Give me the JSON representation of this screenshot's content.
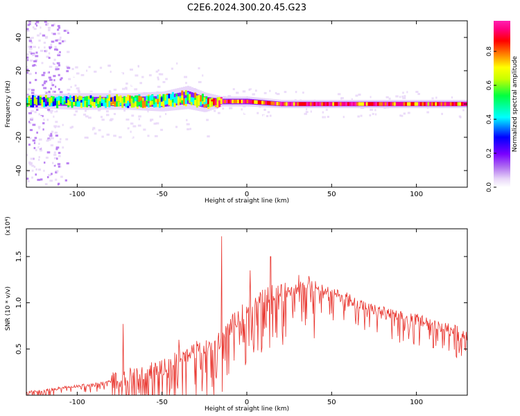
{
  "title": "C2E6.2024.300.20.45.G23",
  "chart_data": [
    {
      "type": "heatmap",
      "xlabel": "Height of straight line (km)",
      "ylabel": "Frequency (Hz)",
      "xlim": [
        -130,
        130
      ],
      "ylim": [
        -50,
        50
      ],
      "x_ticks": [
        -100,
        -50,
        0,
        50,
        100
      ],
      "y_ticks": [
        -40,
        -20,
        0,
        20,
        40
      ],
      "colorbar": {
        "label": "Normalized spectral amplitude",
        "range": [
          0.0,
          0.98
        ],
        "ticks": [
          0.0,
          0.2,
          0.4,
          0.6,
          0.8
        ],
        "colors": [
          "#ffffff",
          "#e8d6f8",
          "#b070f0",
          "#7a00ff",
          "#0000ff",
          "#00ffff",
          "#00ff40",
          "#c8ff00",
          "#ffff00",
          "#ff8000",
          "#ff0000",
          "#ff0080",
          "#ff20b0"
        ]
      },
      "grid": false,
      "band": [
        {
          "x": -130,
          "center": 1.5,
          "half_width": 4,
          "amplitude": 0.45
        },
        {
          "x": -100,
          "center": 1.5,
          "half_width": 5,
          "amplitude": 0.5
        },
        {
          "x": -70,
          "center": 1.5,
          "half_width": 5,
          "amplitude": 0.55
        },
        {
          "x": -50,
          "center": 1.5,
          "half_width": 6,
          "amplitude": 0.55
        },
        {
          "x": -35,
          "center": 4,
          "half_width": 7,
          "amplitude": 0.6
        },
        {
          "x": -25,
          "center": 1,
          "half_width": 6,
          "amplitude": 0.6
        },
        {
          "x": -15,
          "center": 1.5,
          "half_width": 3,
          "amplitude": 0.85
        },
        {
          "x": 0,
          "center": 1.5,
          "half_width": 3,
          "amplitude": 0.8
        },
        {
          "x": 20,
          "center": 0,
          "half_width": 2.5,
          "amplitude": 0.85
        },
        {
          "x": 60,
          "center": 0,
          "half_width": 2.5,
          "amplitude": 0.85
        },
        {
          "x": 100,
          "center": 0,
          "half_width": 2.5,
          "amplitude": 0.8
        },
        {
          "x": 130,
          "center": 0,
          "half_width": 2.5,
          "amplitude": 0.75
        }
      ]
    },
    {
      "type": "line",
      "xlabel": "Height of straight line (km)",
      "ylabel": "SNR (10 * v/v)",
      "y_multiplier": "(x10⁴)",
      "xlim": [
        -130,
        130
      ],
      "ylim": [
        0,
        1.8
      ],
      "x_ticks": [
        -100,
        -50,
        0,
        50,
        100
      ],
      "y_ticks": [
        0.5,
        1.0,
        1.5
      ],
      "grid": false,
      "series_color": "#e8312a",
      "series": [
        {
          "x": [
            -130,
            -120,
            -110,
            -100,
            -90,
            -80,
            -70,
            -60,
            -50,
            -40,
            -30,
            -20,
            -15,
            -10,
            -5,
            0,
            5,
            10,
            15,
            20,
            25,
            30,
            35,
            40,
            45,
            50,
            60,
            70,
            80,
            90,
            100,
            110,
            120,
            130
          ],
          "values": [
            0.03,
            0.05,
            0.08,
            0.1,
            0.12,
            0.15,
            0.2,
            0.25,
            0.3,
            0.4,
            0.5,
            0.55,
            0.6,
            0.75,
            0.85,
            0.95,
            1.0,
            1.05,
            1.1,
            1.1,
            1.15,
            1.2,
            1.25,
            1.22,
            1.15,
            1.1,
            1.05,
            0.95,
            0.9,
            0.85,
            0.82,
            0.78,
            0.72,
            0.65
          ],
          "peaks": [
            {
              "x": -15,
              "value": 1.72
            },
            {
              "x": 14,
              "value": 1.5
            },
            {
              "x": 2,
              "value": 1.35
            },
            {
              "x": -73,
              "value": 0.77
            },
            {
              "x": -40,
              "value": 0.6
            }
          ]
        }
      ]
    }
  ]
}
